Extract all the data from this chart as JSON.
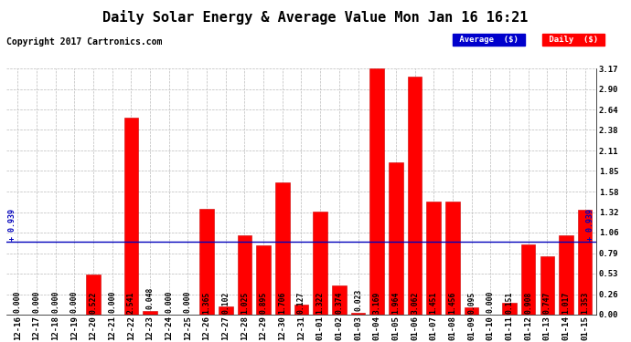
{
  "title": "Daily Solar Energy & Average Value Mon Jan 16 16:21",
  "copyright": "Copyright 2017 Cartronics.com",
  "categories": [
    "12-16",
    "12-17",
    "12-18",
    "12-19",
    "12-20",
    "12-21",
    "12-22",
    "12-23",
    "12-24",
    "12-25",
    "12-26",
    "12-27",
    "12-28",
    "12-29",
    "12-30",
    "12-31",
    "01-01",
    "01-02",
    "01-03",
    "01-04",
    "01-05",
    "01-06",
    "01-07",
    "01-08",
    "01-09",
    "01-10",
    "01-11",
    "01-12",
    "01-13",
    "01-14",
    "01-15"
  ],
  "values": [
    0.0,
    0.0,
    0.0,
    0.0,
    0.522,
    0.0,
    2.541,
    0.048,
    0.0,
    0.0,
    1.365,
    0.102,
    1.025,
    0.895,
    1.706,
    0.127,
    1.322,
    0.374,
    0.023,
    3.169,
    1.964,
    3.062,
    1.451,
    1.456,
    0.095,
    0.0,
    0.151,
    0.908,
    0.747,
    1.017,
    1.353
  ],
  "average": 0.939,
  "bar_color": "#ff0000",
  "bar_edge_color": "#cc0000",
  "average_line_color": "#0000bb",
  "background_color": "#ffffff",
  "plot_bg_color": "#ffffff",
  "grid_color": "#bbbbbb",
  "ylim": [
    0.0,
    3.17
  ],
  "yticks": [
    0.0,
    0.26,
    0.53,
    0.79,
    1.06,
    1.32,
    1.58,
    1.85,
    2.11,
    2.38,
    2.64,
    2.9,
    3.17
  ],
  "title_fontsize": 11,
  "tick_fontsize": 6.5,
  "copyright_fontsize": 7,
  "value_fontsize": 5.8
}
